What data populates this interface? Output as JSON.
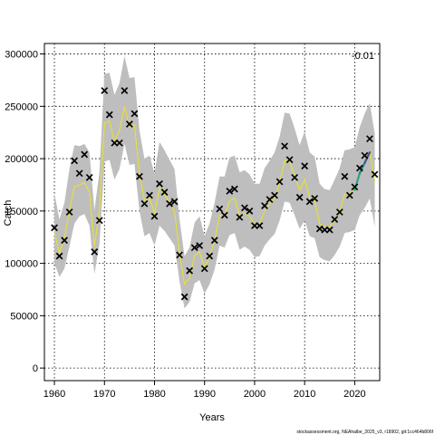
{
  "chart_data": {
    "type": "line",
    "xlabel": "Years",
    "ylabel": "Catch",
    "xlim": [
      1958,
      2025
    ],
    "ylim": [
      -12000,
      310000
    ],
    "x_ticks": [
      1960,
      1970,
      1980,
      1990,
      2000,
      2010,
      2020
    ],
    "y_ticks": [
      0,
      50000,
      100000,
      150000,
      200000,
      250000,
      300000
    ],
    "y_tick_labels": [
      "0",
      "50000",
      "100000",
      "150000",
      "200000",
      "250000",
      "300000"
    ],
    "grid": true,
    "annotation": "-0.01",
    "source_note": "stockassessment.org, NEAhalbe_2025_v3, r18902, git:1cc464b806f",
    "observed": {
      "x": [
        1960,
        1961,
        1962,
        1963,
        1964,
        1965,
        1966,
        1967,
        1968,
        1969,
        1970,
        1971,
        1972,
        1973,
        1974,
        1975,
        1976,
        1977,
        1978,
        1979,
        1980,
        1981,
        1982,
        1983,
        1984,
        1985,
        1986,
        1987,
        1988,
        1989,
        1990,
        1991,
        1992,
        1993,
        1994,
        1995,
        1996,
        1997,
        1998,
        1999,
        2000,
        2001,
        2002,
        2003,
        2004,
        2005,
        2006,
        2007,
        2008,
        2009,
        2010,
        2011,
        2012,
        2013,
        2014,
        2015,
        2016,
        2017,
        2018,
        2019,
        2020,
        2021,
        2022,
        2023,
        2024
      ],
      "y": [
        134000,
        107000,
        122000,
        149000,
        198000,
        186000,
        204000,
        182000,
        111000,
        141000,
        265000,
        242000,
        215000,
        215000,
        265000,
        233000,
        243000,
        183000,
        157000,
        165000,
        145000,
        176000,
        168000,
        157000,
        159000,
        108000,
        68000,
        93000,
        115000,
        117000,
        95000,
        107000,
        122000,
        152000,
        146000,
        169000,
        171000,
        144000,
        153000,
        150000,
        136000,
        136000,
        155000,
        161000,
        165000,
        178000,
        212000,
        199000,
        182000,
        163000,
        193000,
        159000,
        162000,
        133000,
        132000,
        132000,
        142000,
        149000,
        183000,
        165000,
        173000,
        191000,
        203000,
        219000,
        185000
      ]
    },
    "fitted": {
      "x": [
        1960,
        1961,
        1962,
        1963,
        1964,
        1965,
        1966,
        1967,
        1968,
        1969,
        1970,
        1971,
        1972,
        1973,
        1974,
        1975,
        1976,
        1977,
        1978,
        1979,
        1980,
        1981,
        1982,
        1983,
        1984,
        1985,
        1986,
        1987,
        1988,
        1989,
        1990,
        1991,
        1992,
        1993,
        1994,
        1995,
        1996,
        1997,
        1998,
        1999,
        2000,
        2001,
        2002,
        2003,
        2004,
        2005,
        2006,
        2007,
        2008,
        2009,
        2010,
        2011,
        2012,
        2013,
        2014,
        2015,
        2016,
        2017,
        2018,
        2019,
        2020,
        2021,
        2022,
        2023,
        2024
      ],
      "y": [
        130000,
        110000,
        124000,
        150000,
        173000,
        175000,
        177000,
        168000,
        116000,
        150000,
        234000,
        236000,
        216000,
        227000,
        250000,
        230000,
        232000,
        185000,
        160000,
        162000,
        148000,
        172000,
        166000,
        158000,
        150000,
        110000,
        80000,
        86000,
        107000,
        111000,
        96000,
        106000,
        122000,
        146000,
        145000,
        160000,
        162000,
        146000,
        148000,
        145000,
        137000,
        138000,
        150000,
        157000,
        163000,
        177000,
        198000,
        197000,
        184000,
        170000,
        180000,
        163000,
        160000,
        138000,
        135000,
        134000,
        141000,
        150000,
        166000,
        167000,
        170000,
        186000,
        196000,
        206000,
        178000
      ],
      "lower": [
        100000,
        87000,
        95000,
        116000,
        138000,
        145000,
        147000,
        136000,
        90000,
        118000,
        197000,
        199000,
        180000,
        190000,
        214000,
        194000,
        195000,
        150000,
        126000,
        129000,
        117000,
        136000,
        131000,
        124000,
        117000,
        83000,
        57000,
        63000,
        81000,
        84000,
        71000,
        80000,
        94000,
        117000,
        115000,
        127000,
        129000,
        113000,
        116000,
        113000,
        106000,
        107000,
        117000,
        123000,
        128000,
        141000,
        159000,
        158000,
        146000,
        133000,
        141000,
        126000,
        124000,
        106000,
        103000,
        102000,
        108000,
        116000,
        129000,
        130000,
        132000,
        146000,
        153000,
        162000,
        135000
      ],
      "upper": [
        167000,
        142000,
        158000,
        190000,
        213000,
        212000,
        214000,
        206000,
        151000,
        187000,
        281000,
        282000,
        261000,
        272000,
        298000,
        277000,
        278000,
        227000,
        200000,
        203000,
        186000,
        216000,
        208000,
        199000,
        190000,
        142000,
        107000,
        115000,
        139000,
        145000,
        126000,
        138000,
        158000,
        183000,
        183000,
        201000,
        203000,
        187000,
        189000,
        185000,
        176000,
        176000,
        191000,
        198000,
        206000,
        221000,
        244000,
        243000,
        229000,
        213000,
        226000,
        206000,
        202000,
        176000,
        171000,
        170000,
        180000,
        191000,
        208000,
        209000,
        211000,
        230000,
        243000,
        253000,
        224000
      ]
    },
    "recent_segment": {
      "x": [
        2020,
        2021,
        2022,
        2023
      ],
      "y": [
        170000,
        186000,
        196000,
        206000
      ]
    }
  }
}
